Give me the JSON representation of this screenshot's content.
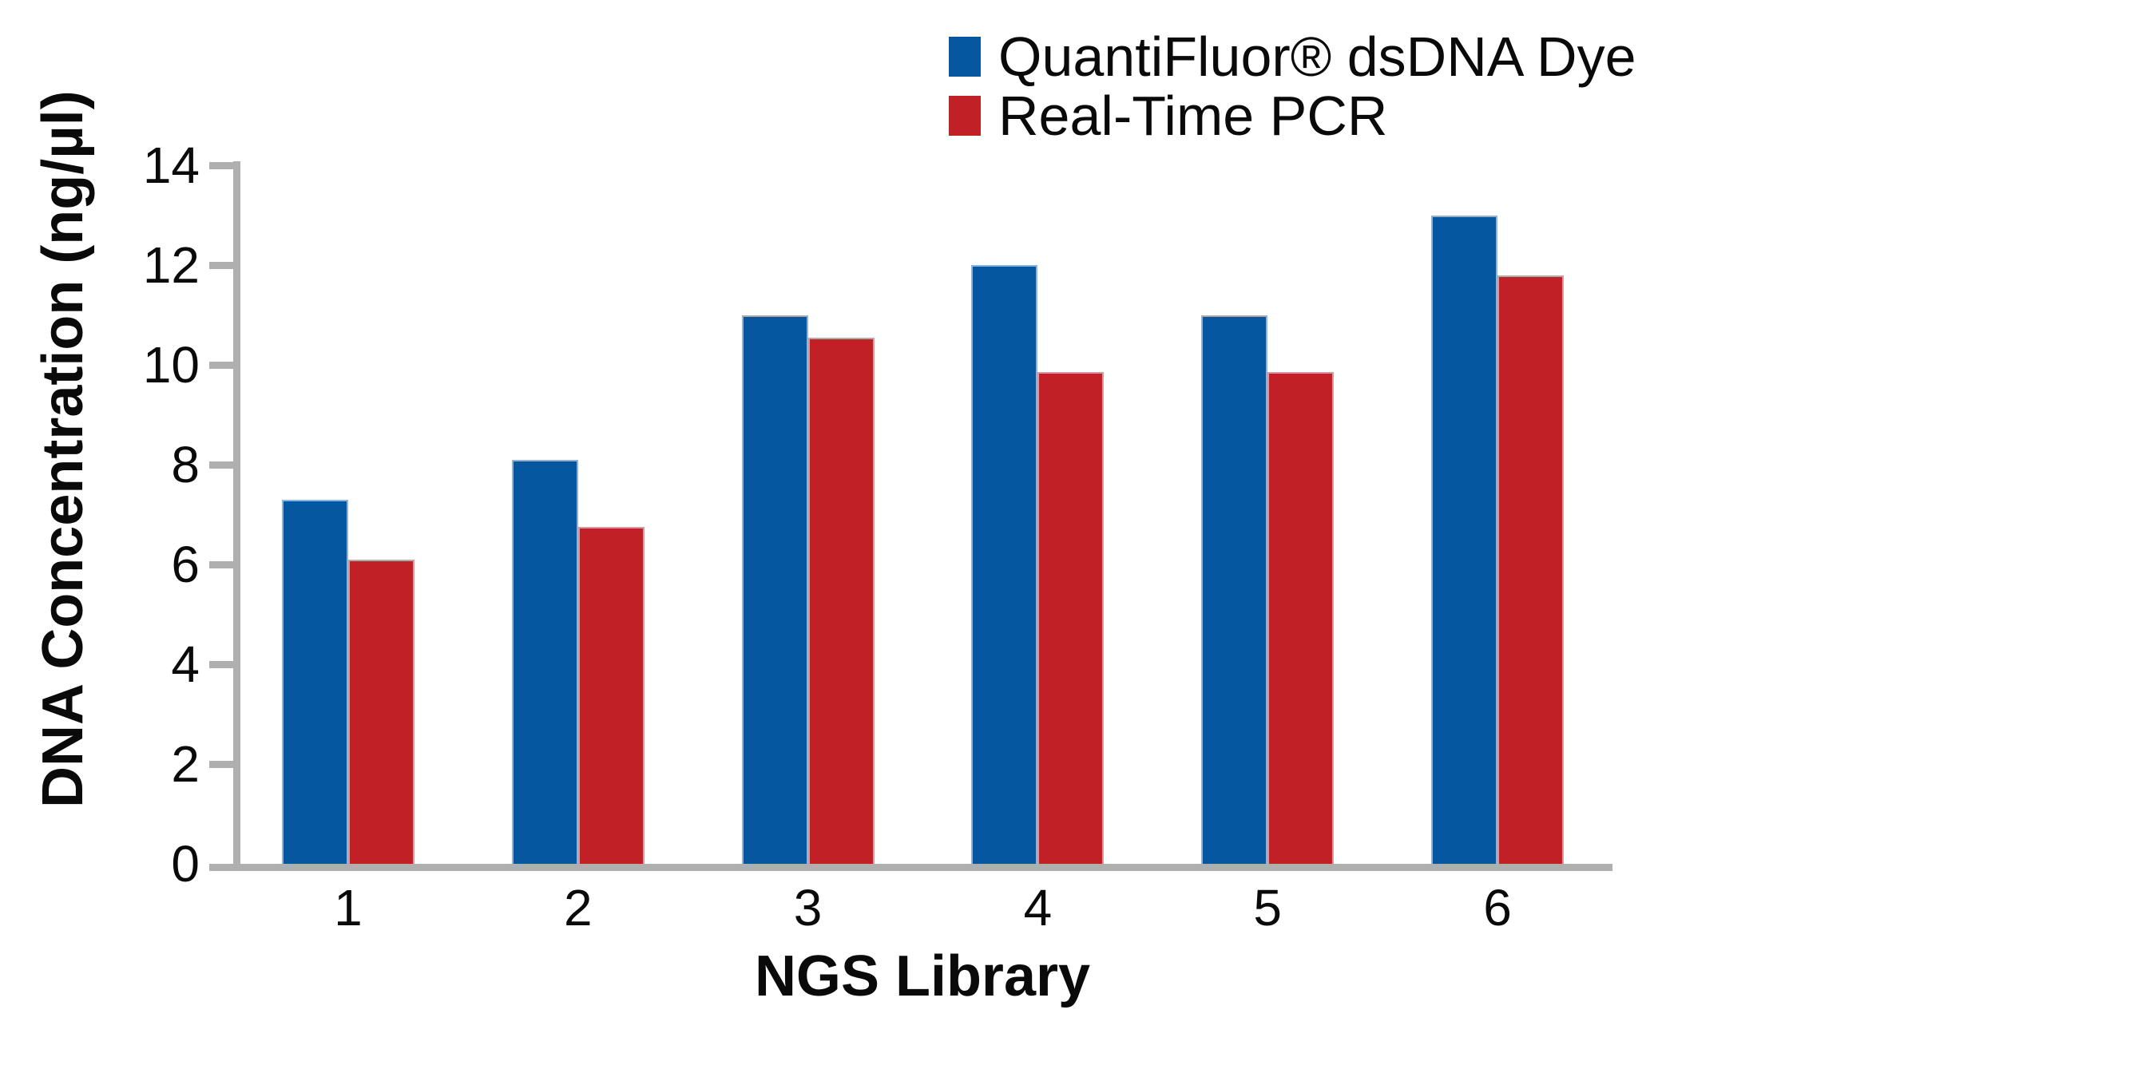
{
  "chart_data": {
    "type": "bar",
    "title": "",
    "categories": [
      "1",
      "2",
      "3",
      "4",
      "5",
      "6"
    ],
    "series": [
      {
        "name": "QuantiFluor® dsDNA Dye",
        "key": "quantifluor-dsdna-dye",
        "color": "#0558A0",
        "border_color": "#8FB3D8",
        "values": [
          7.3,
          8.1,
          11.0,
          12.0,
          11.0,
          13.0
        ]
      },
      {
        "name": "Real-Time PCR",
        "key": "real-time-pcr",
        "color": "#C02026",
        "border_color": "#DA999E",
        "values": [
          6.1,
          6.75,
          10.55,
          9.85,
          9.85,
          11.8
        ]
      }
    ],
    "xlabel": "NGS Library",
    "ylabel": "DNA Concentration (ng/µl)",
    "ylim": [
      0,
      14
    ],
    "yticks": [
      0,
      2,
      4,
      6,
      8,
      10,
      12,
      14
    ],
    "grid": false,
    "legend_position": "top-right",
    "axis_color": "#AFAFAF",
    "text_color": "#0a0a0a",
    "background_color": "#ffffff"
  }
}
